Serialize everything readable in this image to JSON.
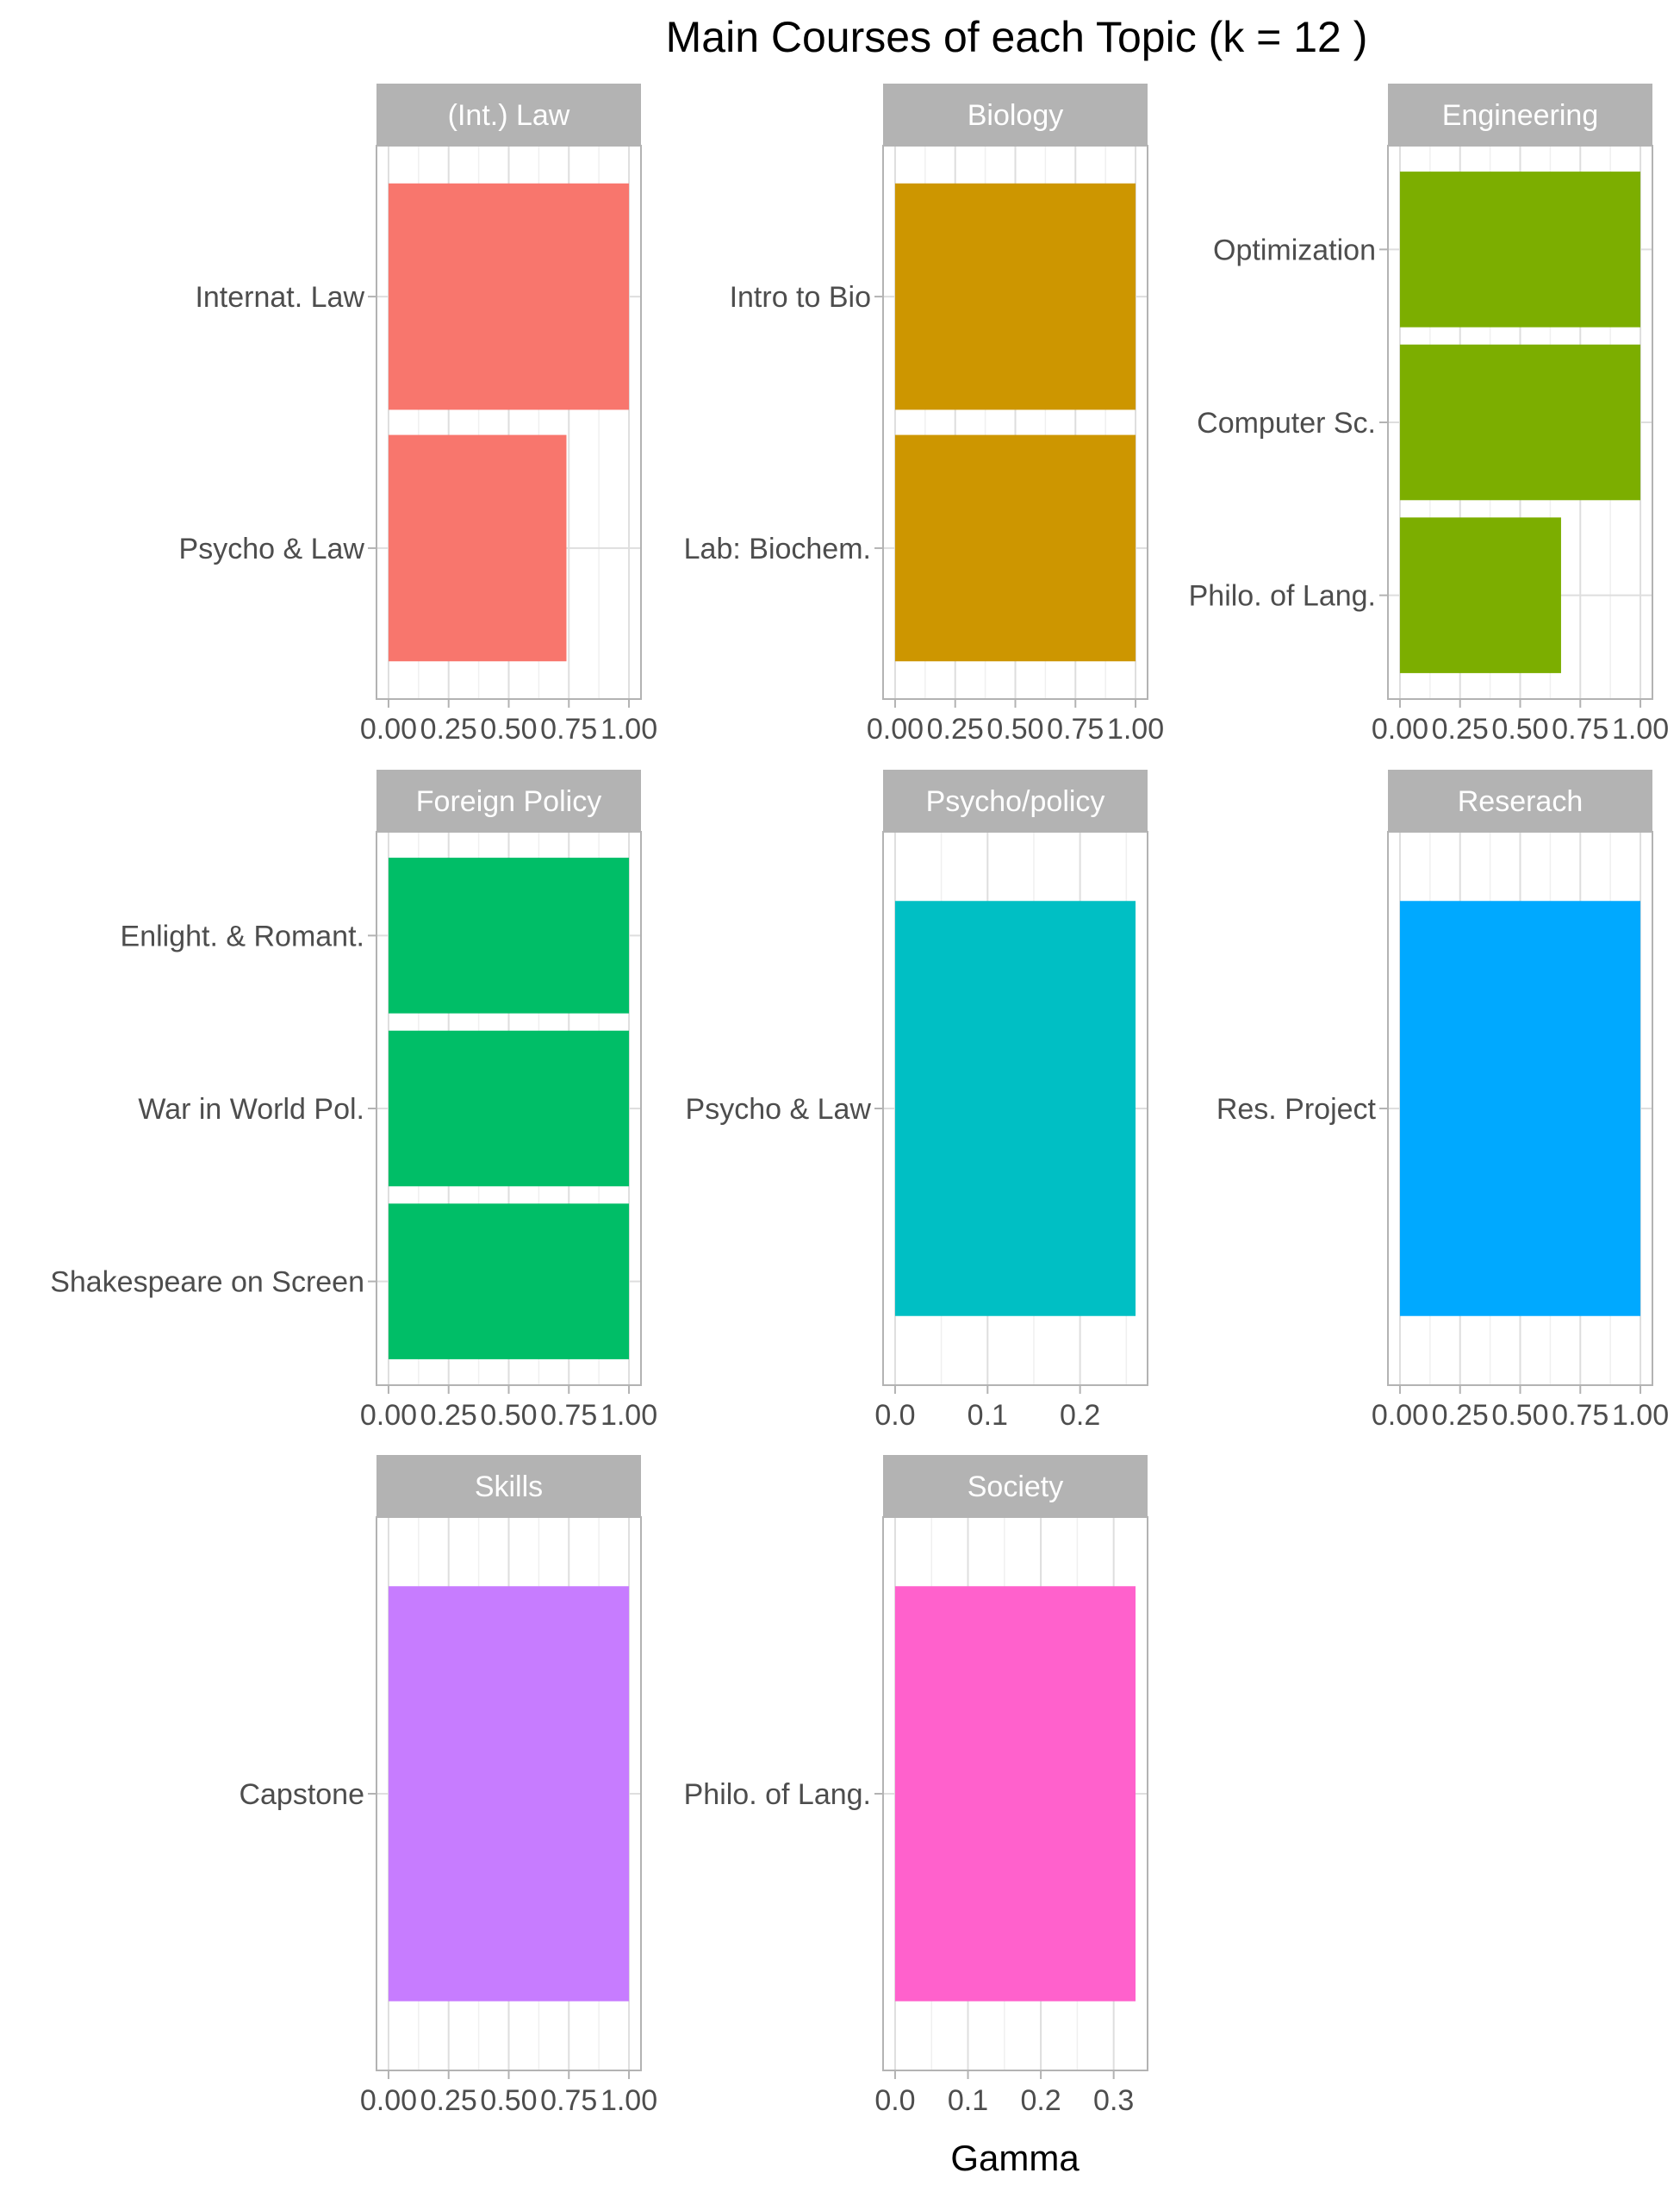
{
  "chart_data": {
    "type": "bar",
    "orientation": "horizontal",
    "title": "Main Courses of each Topic (k = 12 )",
    "xlabel": "Gamma",
    "ylabel": "",
    "grid": true,
    "legend": "none",
    "panels": [
      {
        "topic": "(Int.) Law",
        "color": "#F8766D",
        "categories": [
          "Internat. Law",
          "Psycho & Law"
        ],
        "values": [
          1.0,
          0.74
        ],
        "xlim": [
          0,
          1.0
        ],
        "xticks": [
          0,
          0.25,
          0.5,
          0.75,
          1.0
        ],
        "xtick_labels": [
          "0.00",
          "0.25",
          "0.50",
          "0.75",
          "1.00"
        ]
      },
      {
        "topic": "Biology",
        "color": "#CD9600",
        "categories": [
          "Intro to Bio",
          "Lab: Biochem."
        ],
        "values": [
          1.0,
          1.0
        ],
        "xlim": [
          0,
          1.0
        ],
        "xticks": [
          0,
          0.25,
          0.5,
          0.75,
          1.0
        ],
        "xtick_labels": [
          "0.00",
          "0.25",
          "0.50",
          "0.75",
          "1.00"
        ]
      },
      {
        "topic": "Engineering",
        "color": "#7CAE00",
        "categories": [
          "Optimization",
          "Computer Sc.",
          "Philo. of Lang."
        ],
        "values": [
          1.0,
          1.0,
          0.67
        ],
        "xlim": [
          0,
          1.0
        ],
        "xticks": [
          0,
          0.25,
          0.5,
          0.75,
          1.0
        ],
        "xtick_labels": [
          "0.00",
          "0.25",
          "0.50",
          "0.75",
          "1.00"
        ]
      },
      {
        "topic": "Foreign Policy",
        "color": "#00BE67",
        "categories": [
          "Enlight. & Romant.",
          "War in World Pol.",
          "Shakespeare on Screen"
        ],
        "values": [
          1.0,
          1.0,
          1.0
        ],
        "xlim": [
          0,
          1.0
        ],
        "xticks": [
          0,
          0.25,
          0.5,
          0.75,
          1.0
        ],
        "xtick_labels": [
          "0.00",
          "0.25",
          "0.50",
          "0.75",
          "1.00"
        ]
      },
      {
        "topic": "Psycho/policy",
        "color": "#00BFC4",
        "categories": [
          "Psycho & Law"
        ],
        "values": [
          0.26
        ],
        "xlim": [
          0,
          0.26
        ],
        "xticks": [
          0,
          0.1,
          0.2
        ],
        "xtick_labels": [
          "0.0",
          "0.1",
          "0.2"
        ]
      },
      {
        "topic": "Reserach",
        "color": "#00A9FF",
        "categories": [
          "Res. Project"
        ],
        "values": [
          1.0
        ],
        "xlim": [
          0,
          1.0
        ],
        "xticks": [
          0,
          0.25,
          0.5,
          0.75,
          1.0
        ],
        "xtick_labels": [
          "0.00",
          "0.25",
          "0.50",
          "0.75",
          "1.00"
        ]
      },
      {
        "topic": "Skills",
        "color": "#C77CFF",
        "categories": [
          "Capstone"
        ],
        "values": [
          1.0
        ],
        "xlim": [
          0,
          1.0
        ],
        "xticks": [
          0,
          0.25,
          0.5,
          0.75,
          1.0
        ],
        "xtick_labels": [
          "0.00",
          "0.25",
          "0.50",
          "0.75",
          "1.00"
        ]
      },
      {
        "topic": "Society",
        "color": "#FF61CC",
        "categories": [
          "Philo. of Lang."
        ],
        "values": [
          0.33
        ],
        "xlim": [
          0,
          0.33
        ],
        "xticks": [
          0,
          0.1,
          0.2,
          0.3
        ],
        "xtick_labels": [
          "0.0",
          "0.1",
          "0.2",
          "0.3"
        ]
      }
    ]
  }
}
